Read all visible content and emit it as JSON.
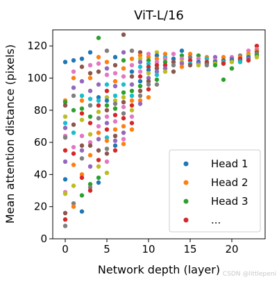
{
  "chart_data": {
    "type": "scatter",
    "title": "ViT-L/16",
    "xlabel": "Network depth (layer)",
    "ylabel": "Mean attention distance (pixels)",
    "xlim": [
      -1.5,
      24
    ],
    "ylim": [
      0,
      130
    ],
    "xticks": [
      0,
      5,
      10,
      15,
      20
    ],
    "yticks": [
      0,
      20,
      40,
      60,
      80,
      100,
      120
    ],
    "grid": false,
    "legend": {
      "placement": "lower-right",
      "entries": [
        {
          "label": "Head 1",
          "color": "#1f77b4"
        },
        {
          "label": "Head 2",
          "color": "#ff7f0e"
        },
        {
          "label": "Head 3",
          "color": "#2ca02c"
        },
        {
          "label": "...",
          "color": "#d62728"
        }
      ]
    },
    "palette": [
      "#1f77b4",
      "#ff7f0e",
      "#2ca02c",
      "#d62728",
      "#9467bd",
      "#8c564b",
      "#e377c2",
      "#7f7f7f",
      "#bcbd22",
      "#17becf"
    ],
    "points": [
      {
        "x": 0,
        "y": 110,
        "c": 0
      },
      {
        "x": 0,
        "y": 86,
        "c": 1
      },
      {
        "x": 0,
        "y": 85,
        "c": 2
      },
      {
        "x": 0,
        "y": 83,
        "c": 5
      },
      {
        "x": 0,
        "y": 76,
        "c": 8
      },
      {
        "x": 0,
        "y": 72,
        "c": 9
      },
      {
        "x": 0,
        "y": 69,
        "c": 4
      },
      {
        "x": 0,
        "y": 64,
        "c": 6
      },
      {
        "x": 0,
        "y": 63,
        "c": 7
      },
      {
        "x": 0,
        "y": 55,
        "c": 3
      },
      {
        "x": 0,
        "y": 48,
        "c": 4
      },
      {
        "x": 0,
        "y": 37,
        "c": 0
      },
      {
        "x": 0,
        "y": 29,
        "c": 6
      },
      {
        "x": 0,
        "y": 28,
        "c": 8
      },
      {
        "x": 0,
        "y": 16,
        "c": 5
      },
      {
        "x": 0,
        "y": 12,
        "c": 3
      },
      {
        "x": 0,
        "y": 8,
        "c": 7
      },
      {
        "x": 1,
        "y": 111,
        "c": 0
      },
      {
        "x": 1,
        "y": 104,
        "c": 6
      },
      {
        "x": 1,
        "y": 100,
        "c": 1
      },
      {
        "x": 1,
        "y": 94,
        "c": 4
      },
      {
        "x": 1,
        "y": 89,
        "c": 7
      },
      {
        "x": 1,
        "y": 80,
        "c": 2
      },
      {
        "x": 1,
        "y": 71,
        "c": 5
      },
      {
        "x": 1,
        "y": 66,
        "c": 9
      },
      {
        "x": 1,
        "y": 57,
        "c": 6
      },
      {
        "x": 1,
        "y": 53,
        "c": 3
      },
      {
        "x": 1,
        "y": 46,
        "c": 1
      },
      {
        "x": 1,
        "y": 33,
        "c": 8
      },
      {
        "x": 1,
        "y": 22,
        "c": 7
      },
      {
        "x": 1,
        "y": 20,
        "c": 1
      },
      {
        "x": 2,
        "y": 112,
        "c": 0
      },
      {
        "x": 2,
        "y": 107,
        "c": 5
      },
      {
        "x": 2,
        "y": 98,
        "c": 4
      },
      {
        "x": 2,
        "y": 89,
        "c": 9
      },
      {
        "x": 2,
        "y": 86,
        "c": 1
      },
      {
        "x": 2,
        "y": 81,
        "c": 2
      },
      {
        "x": 2,
        "y": 78,
        "c": 3
      },
      {
        "x": 2,
        "y": 74,
        "c": 8
      },
      {
        "x": 2,
        "y": 64,
        "c": 6
      },
      {
        "x": 2,
        "y": 58,
        "c": 5
      },
      {
        "x": 2,
        "y": 55,
        "c": 4
      },
      {
        "x": 2,
        "y": 50,
        "c": 7
      },
      {
        "x": 2,
        "y": 40,
        "c": 1
      },
      {
        "x": 2,
        "y": 38,
        "c": 3
      },
      {
        "x": 2,
        "y": 27,
        "c": 2
      },
      {
        "x": 2,
        "y": 17,
        "c": 0
      },
      {
        "x": 3,
        "y": 116,
        "c": 0
      },
      {
        "x": 3,
        "y": 108,
        "c": 6
      },
      {
        "x": 3,
        "y": 103,
        "c": 5
      },
      {
        "x": 3,
        "y": 100,
        "c": 1
      },
      {
        "x": 3,
        "y": 92,
        "c": 4
      },
      {
        "x": 3,
        "y": 87,
        "c": 9
      },
      {
        "x": 3,
        "y": 83,
        "c": 7
      },
      {
        "x": 3,
        "y": 76,
        "c": 2
      },
      {
        "x": 3,
        "y": 72,
        "c": 3
      },
      {
        "x": 3,
        "y": 65,
        "c": 8
      },
      {
        "x": 3,
        "y": 60,
        "c": 6
      },
      {
        "x": 3,
        "y": 58,
        "c": 5
      },
      {
        "x": 3,
        "y": 52,
        "c": 1
      },
      {
        "x": 3,
        "y": 45,
        "c": 4
      },
      {
        "x": 3,
        "y": 34,
        "c": 2
      },
      {
        "x": 3,
        "y": 32,
        "c": 7
      },
      {
        "x": 3,
        "y": 30,
        "c": 3
      },
      {
        "x": 4,
        "y": 125,
        "c": 2
      },
      {
        "x": 4,
        "y": 113,
        "c": 1
      },
      {
        "x": 4,
        "y": 109,
        "c": 6
      },
      {
        "x": 4,
        "y": 104,
        "c": 5
      },
      {
        "x": 4,
        "y": 96,
        "c": 4
      },
      {
        "x": 4,
        "y": 88,
        "c": 0
      },
      {
        "x": 4,
        "y": 86,
        "c": 9
      },
      {
        "x": 4,
        "y": 83,
        "c": 3
      },
      {
        "x": 4,
        "y": 79,
        "c": 8
      },
      {
        "x": 4,
        "y": 75,
        "c": 7
      },
      {
        "x": 4,
        "y": 70,
        "c": 6
      },
      {
        "x": 4,
        "y": 66,
        "c": 1
      },
      {
        "x": 4,
        "y": 62,
        "c": 4
      },
      {
        "x": 4,
        "y": 55,
        "c": 5
      },
      {
        "x": 4,
        "y": 49,
        "c": 3
      },
      {
        "x": 4,
        "y": 45,
        "c": 8
      },
      {
        "x": 4,
        "y": 38,
        "c": 2
      },
      {
        "x": 4,
        "y": 35,
        "c": 0
      },
      {
        "x": 5,
        "y": 117,
        "c": 7
      },
      {
        "x": 5,
        "y": 110,
        "c": 1
      },
      {
        "x": 5,
        "y": 106,
        "c": 4
      },
      {
        "x": 5,
        "y": 102,
        "c": 6
      },
      {
        "x": 5,
        "y": 96,
        "c": 9
      },
      {
        "x": 5,
        "y": 92,
        "c": 3
      },
      {
        "x": 5,
        "y": 88,
        "c": 8
      },
      {
        "x": 5,
        "y": 86,
        "c": 0
      },
      {
        "x": 5,
        "y": 83,
        "c": 2
      },
      {
        "x": 5,
        "y": 80,
        "c": 5
      },
      {
        "x": 5,
        "y": 76,
        "c": 6
      },
      {
        "x": 5,
        "y": 72,
        "c": 4
      },
      {
        "x": 5,
        "y": 68,
        "c": 3
      },
      {
        "x": 5,
        "y": 63,
        "c": 9
      },
      {
        "x": 5,
        "y": 61,
        "c": 1
      },
      {
        "x": 5,
        "y": 56,
        "c": 7
      },
      {
        "x": 5,
        "y": 53,
        "c": 5
      },
      {
        "x": 5,
        "y": 48,
        "c": 6
      },
      {
        "x": 5,
        "y": 41,
        "c": 8
      },
      {
        "x": 6,
        "y": 113,
        "c": 0
      },
      {
        "x": 6,
        "y": 108,
        "c": 5
      },
      {
        "x": 6,
        "y": 103,
        "c": 6
      },
      {
        "x": 6,
        "y": 98,
        "c": 1
      },
      {
        "x": 6,
        "y": 95,
        "c": 4
      },
      {
        "x": 6,
        "y": 89,
        "c": 9
      },
      {
        "x": 6,
        "y": 86,
        "c": 8
      },
      {
        "x": 6,
        "y": 84,
        "c": 7
      },
      {
        "x": 6,
        "y": 81,
        "c": 2
      },
      {
        "x": 6,
        "y": 77,
        "c": 3
      },
      {
        "x": 6,
        "y": 73,
        "c": 6
      },
      {
        "x": 6,
        "y": 68,
        "c": 1
      },
      {
        "x": 6,
        "y": 64,
        "c": 5
      },
      {
        "x": 6,
        "y": 61,
        "c": 4
      },
      {
        "x": 6,
        "y": 58,
        "c": 0
      },
      {
        "x": 6,
        "y": 55,
        "c": 3
      },
      {
        "x": 7,
        "y": 127,
        "c": 5
      },
      {
        "x": 7,
        "y": 116,
        "c": 4
      },
      {
        "x": 7,
        "y": 111,
        "c": 2
      },
      {
        "x": 7,
        "y": 106,
        "c": 1
      },
      {
        "x": 7,
        "y": 101,
        "c": 6
      },
      {
        "x": 7,
        "y": 96,
        "c": 9
      },
      {
        "x": 7,
        "y": 91,
        "c": 2
      },
      {
        "x": 7,
        "y": 88,
        "c": 8
      },
      {
        "x": 7,
        "y": 85,
        "c": 5
      },
      {
        "x": 7,
        "y": 82,
        "c": 6
      },
      {
        "x": 7,
        "y": 78,
        "c": 7
      },
      {
        "x": 7,
        "y": 75,
        "c": 3
      },
      {
        "x": 7,
        "y": 70,
        "c": 1
      },
      {
        "x": 7,
        "y": 66,
        "c": 4
      },
      {
        "x": 7,
        "y": 62,
        "c": 6
      },
      {
        "x": 7,
        "y": 59,
        "c": 1
      },
      {
        "x": 8,
        "y": 117,
        "c": 7
      },
      {
        "x": 8,
        "y": 112,
        "c": 1
      },
      {
        "x": 8,
        "y": 108,
        "c": 6
      },
      {
        "x": 8,
        "y": 104,
        "c": 0
      },
      {
        "x": 8,
        "y": 101,
        "c": 5
      },
      {
        "x": 8,
        "y": 96,
        "c": 4
      },
      {
        "x": 8,
        "y": 92,
        "c": 2
      },
      {
        "x": 8,
        "y": 89,
        "c": 9
      },
      {
        "x": 8,
        "y": 86,
        "c": 1
      },
      {
        "x": 8,
        "y": 83,
        "c": 3
      },
      {
        "x": 8,
        "y": 80,
        "c": 8
      },
      {
        "x": 8,
        "y": 76,
        "c": 6
      },
      {
        "x": 8,
        "y": 72,
        "c": 3
      },
      {
        "x": 8,
        "y": 68,
        "c": 1
      },
      {
        "x": 9,
        "y": 116,
        "c": 5
      },
      {
        "x": 9,
        "y": 114,
        "c": 1
      },
      {
        "x": 9,
        "y": 112,
        "c": 8
      },
      {
        "x": 9,
        "y": 110,
        "c": 4
      },
      {
        "x": 9,
        "y": 107,
        "c": 9
      },
      {
        "x": 9,
        "y": 104,
        "c": 6
      },
      {
        "x": 9,
        "y": 101,
        "c": 3
      },
      {
        "x": 9,
        "y": 98,
        "c": 0
      },
      {
        "x": 9,
        "y": 95,
        "c": 2
      },
      {
        "x": 9,
        "y": 92,
        "c": 5
      },
      {
        "x": 9,
        "y": 89,
        "c": 7
      },
      {
        "x": 9,
        "y": 86,
        "c": 1
      },
      {
        "x": 9,
        "y": 84,
        "c": 4
      },
      {
        "x": 10,
        "y": 115,
        "c": 6
      },
      {
        "x": 10,
        "y": 113,
        "c": 1
      },
      {
        "x": 10,
        "y": 111,
        "c": 2
      },
      {
        "x": 10,
        "y": 109,
        "c": 9
      },
      {
        "x": 10,
        "y": 107,
        "c": 3
      },
      {
        "x": 10,
        "y": 105,
        "c": 0
      },
      {
        "x": 10,
        "y": 103,
        "c": 8
      },
      {
        "x": 10,
        "y": 100,
        "c": 4
      },
      {
        "x": 10,
        "y": 98,
        "c": 5
      },
      {
        "x": 10,
        "y": 96,
        "c": 7
      },
      {
        "x": 10,
        "y": 93,
        "c": 3
      },
      {
        "x": 10,
        "y": 88,
        "c": 1
      },
      {
        "x": 11,
        "y": 116,
        "c": 8
      },
      {
        "x": 11,
        "y": 114,
        "c": 0
      },
      {
        "x": 11,
        "y": 112,
        "c": 1
      },
      {
        "x": 11,
        "y": 110,
        "c": 6
      },
      {
        "x": 11,
        "y": 108,
        "c": 3
      },
      {
        "x": 11,
        "y": 106,
        "c": 5
      },
      {
        "x": 11,
        "y": 104,
        "c": 4
      },
      {
        "x": 11,
        "y": 102,
        "c": 9
      },
      {
        "x": 11,
        "y": 99,
        "c": 2
      },
      {
        "x": 11,
        "y": 96,
        "c": 7
      },
      {
        "x": 12,
        "y": 115,
        "c": 1
      },
      {
        "x": 12,
        "y": 113,
        "c": 9
      },
      {
        "x": 12,
        "y": 112,
        "c": 6
      },
      {
        "x": 12,
        "y": 110,
        "c": 2
      },
      {
        "x": 12,
        "y": 108,
        "c": 3
      },
      {
        "x": 12,
        "y": 106,
        "c": 4
      },
      {
        "x": 12,
        "y": 104,
        "c": 8
      },
      {
        "x": 13,
        "y": 115,
        "c": 6
      },
      {
        "x": 13,
        "y": 112,
        "c": 0
      },
      {
        "x": 13,
        "y": 110,
        "c": 5
      },
      {
        "x": 13,
        "y": 108,
        "c": 7
      },
      {
        "x": 13,
        "y": 104,
        "c": 5
      },
      {
        "x": 14,
        "y": 117,
        "c": 0
      },
      {
        "x": 14,
        "y": 114,
        "c": 2
      },
      {
        "x": 14,
        "y": 112,
        "c": 6
      },
      {
        "x": 14,
        "y": 110,
        "c": 8
      },
      {
        "x": 14,
        "y": 109,
        "c": 4
      },
      {
        "x": 14,
        "y": 107,
        "c": 1
      },
      {
        "x": 15,
        "y": 115,
        "c": 1
      },
      {
        "x": 15,
        "y": 113,
        "c": 7
      },
      {
        "x": 15,
        "y": 111,
        "c": 3
      },
      {
        "x": 15,
        "y": 109,
        "c": 9
      },
      {
        "x": 15,
        "y": 108,
        "c": 5
      },
      {
        "x": 16,
        "y": 114,
        "c": 2
      },
      {
        "x": 16,
        "y": 112,
        "c": 6
      },
      {
        "x": 16,
        "y": 110,
        "c": 0
      },
      {
        "x": 16,
        "y": 109,
        "c": 4
      },
      {
        "x": 16,
        "y": 108,
        "c": 8
      },
      {
        "x": 17,
        "y": 113,
        "c": 1
      },
      {
        "x": 17,
        "y": 112,
        "c": 9
      },
      {
        "x": 17,
        "y": 110,
        "c": 3
      },
      {
        "x": 17,
        "y": 109,
        "c": 5
      },
      {
        "x": 17,
        "y": 108,
        "c": 7
      },
      {
        "x": 18,
        "y": 113,
        "c": 4
      },
      {
        "x": 18,
        "y": 111,
        "c": 6
      },
      {
        "x": 18,
        "y": 110,
        "c": 0
      },
      {
        "x": 18,
        "y": 109,
        "c": 8
      },
      {
        "x": 18,
        "y": 108,
        "c": 2
      },
      {
        "x": 19,
        "y": 113,
        "c": 1
      },
      {
        "x": 19,
        "y": 111,
        "c": 5
      },
      {
        "x": 19,
        "y": 110,
        "c": 9
      },
      {
        "x": 19,
        "y": 109,
        "c": 3
      },
      {
        "x": 19,
        "y": 99,
        "c": 2
      },
      {
        "x": 20,
        "y": 113,
        "c": 6
      },
      {
        "x": 20,
        "y": 112,
        "c": 4
      },
      {
        "x": 20,
        "y": 111,
        "c": 0
      },
      {
        "x": 20,
        "y": 110,
        "c": 8
      },
      {
        "x": 20,
        "y": 106,
        "c": 2
      },
      {
        "x": 21,
        "y": 114,
        "c": 7
      },
      {
        "x": 21,
        "y": 113,
        "c": 1
      },
      {
        "x": 21,
        "y": 112,
        "c": 3
      },
      {
        "x": 21,
        "y": 111,
        "c": 5
      },
      {
        "x": 21,
        "y": 110,
        "c": 9
      },
      {
        "x": 22,
        "y": 117,
        "c": 6
      },
      {
        "x": 22,
        "y": 115,
        "c": 1
      },
      {
        "x": 22,
        "y": 114,
        "c": 8
      },
      {
        "x": 22,
        "y": 113,
        "c": 0
      },
      {
        "x": 22,
        "y": 112,
        "c": 4
      },
      {
        "x": 22,
        "y": 111,
        "c": 3
      },
      {
        "x": 23,
        "y": 120,
        "c": 3
      },
      {
        "x": 23,
        "y": 118,
        "c": 6
      },
      {
        "x": 23,
        "y": 117,
        "c": 1
      },
      {
        "x": 23,
        "y": 116,
        "c": 5
      },
      {
        "x": 23,
        "y": 115,
        "c": 7
      },
      {
        "x": 23,
        "y": 114,
        "c": 2
      },
      {
        "x": 23,
        "y": 113,
        "c": 8
      }
    ]
  },
  "watermark": "CSDN @littlepeni"
}
